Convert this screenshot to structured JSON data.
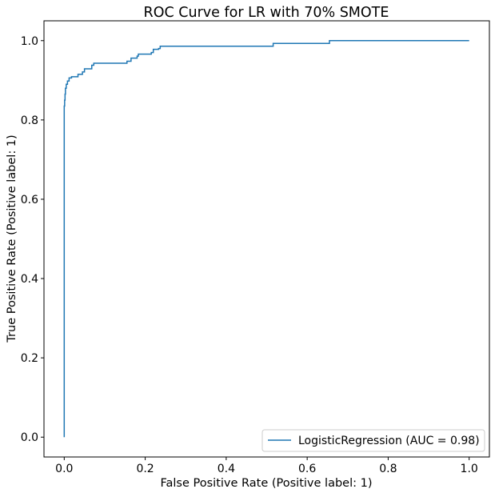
{
  "chart_data": {
    "type": "line",
    "title": "ROC Curve for LR with 70% SMOTE",
    "xlabel": "False Positive Rate (Positive label: 1)",
    "ylabel": "True Positive Rate (Positive label: 1)",
    "xlim": [
      -0.05,
      1.05
    ],
    "ylim": [
      -0.05,
      1.05
    ],
    "xticks": [
      0.0,
      0.2,
      0.4,
      0.6,
      0.8,
      1.0
    ],
    "yticks": [
      0.0,
      0.2,
      0.4,
      0.6,
      0.8,
      1.0
    ],
    "xtick_labels": [
      "0.0",
      "0.2",
      "0.4",
      "0.6",
      "0.8",
      "1.0"
    ],
    "ytick_labels": [
      "0.0",
      "0.2",
      "0.4",
      "0.6",
      "0.8",
      "1.0"
    ],
    "grid": false,
    "legend_position": "lower-right",
    "series": [
      {
        "name": "LogisticRegression (AUC = 0.98)",
        "color": "#1f77b4",
        "x": [
          0.0,
          0.0,
          0.001,
          0.001,
          0.002,
          0.002,
          0.003,
          0.003,
          0.005,
          0.005,
          0.008,
          0.008,
          0.012,
          0.012,
          0.018,
          0.018,
          0.034,
          0.034,
          0.045,
          0.045,
          0.05,
          0.05,
          0.068,
          0.068,
          0.073,
          0.073,
          0.155,
          0.155,
          0.165,
          0.165,
          0.18,
          0.18,
          0.183,
          0.183,
          0.215,
          0.215,
          0.22,
          0.22,
          0.233,
          0.233,
          0.237,
          0.237,
          0.516,
          0.516,
          0.655,
          0.655,
          1.0
        ],
        "y": [
          0.0,
          0.835,
          0.835,
          0.85,
          0.85,
          0.865,
          0.865,
          0.88,
          0.88,
          0.89,
          0.89,
          0.898,
          0.898,
          0.906,
          0.906,
          0.909,
          0.909,
          0.915,
          0.915,
          0.921,
          0.921,
          0.929,
          0.929,
          0.938,
          0.938,
          0.943,
          0.943,
          0.948,
          0.948,
          0.956,
          0.956,
          0.961,
          0.961,
          0.966,
          0.966,
          0.97,
          0.97,
          0.978,
          0.978,
          0.98,
          0.98,
          0.986,
          0.986,
          0.993,
          0.993,
          1.0,
          1.0
        ]
      }
    ]
  }
}
